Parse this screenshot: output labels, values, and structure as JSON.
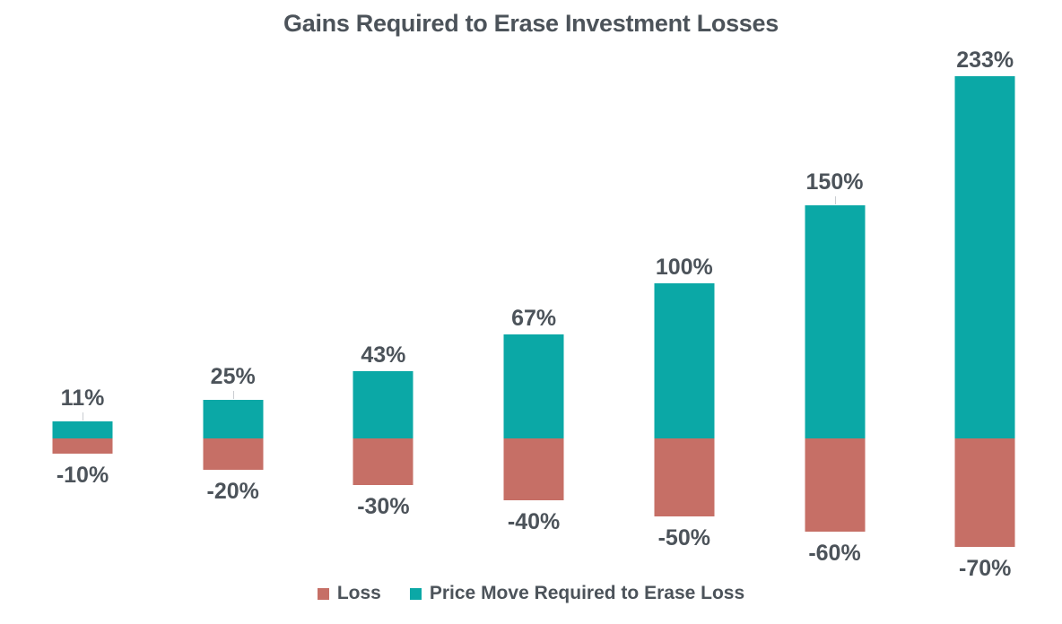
{
  "title": "Gains Required to Erase Investment Losses",
  "colors": {
    "gain": "#0BA8A6",
    "loss": "#C66F66",
    "text": "#4C535A",
    "leader": "#C9CDD1",
    "background": "#FFFFFF"
  },
  "legend": {
    "position": "bottom",
    "items": [
      {
        "label": "Loss",
        "color": "#C66F66"
      },
      {
        "label": "Price Move Required to Erase Loss",
        "color": "#0BA8A6"
      }
    ]
  },
  "chart_data": {
    "type": "bar",
    "title": "Gains Required to Erase Investment Losses",
    "orientation": "vertical",
    "baseline_value": 0,
    "ylim": [
      -70,
      233
    ],
    "grid": false,
    "axes_visible": false,
    "legend_position": "bottom",
    "categories": [
      "-10%",
      "-20%",
      "-30%",
      "-40%",
      "-50%",
      "-60%",
      "-70%"
    ],
    "series": [
      {
        "name": "Loss",
        "color": "#C66F66",
        "values": [
          -10,
          -20,
          -30,
          -40,
          -50,
          -60,
          -70
        ]
      },
      {
        "name": "Price Move Required to Erase Loss",
        "color": "#0BA8A6",
        "values": [
          11,
          25,
          43,
          67,
          100,
          150,
          233
        ]
      }
    ],
    "bars": [
      {
        "loss": 10,
        "gain": 11,
        "loss_label": "-10%",
        "gain_label": "11%",
        "leader": true
      },
      {
        "loss": 20,
        "gain": 25,
        "loss_label": "-20%",
        "gain_label": "25%",
        "leader": true
      },
      {
        "loss": 30,
        "gain": 43,
        "loss_label": "-30%",
        "gain_label": "43%",
        "leader": false
      },
      {
        "loss": 40,
        "gain": 67,
        "loss_label": "-40%",
        "gain_label": "67%",
        "leader": false
      },
      {
        "loss": 50,
        "gain": 100,
        "loss_label": "-50%",
        "gain_label": "100%",
        "leader": false
      },
      {
        "loss": 60,
        "gain": 150,
        "loss_label": "-60%",
        "gain_label": "150%",
        "leader": true
      },
      {
        "loss": 70,
        "gain": 233,
        "loss_label": "-70%",
        "gain_label": "233%",
        "leader": false
      }
    ]
  }
}
